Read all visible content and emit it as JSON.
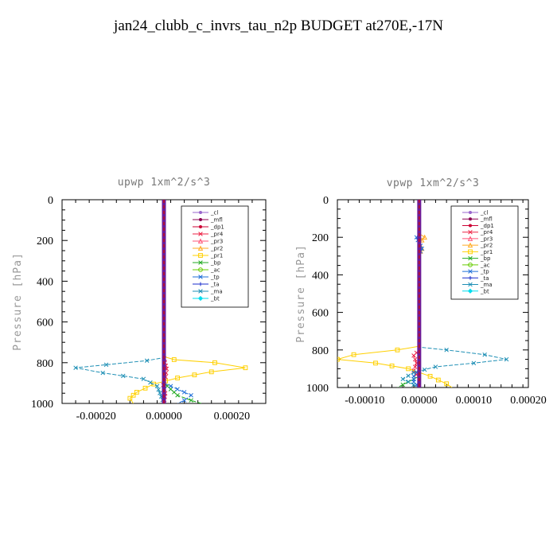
{
  "title": "jan24_clubb_c_invrs_tau_n2p  BUDGET at270E,-17N",
  "chart_data": [
    {
      "type": "line",
      "title": "upwp   1xm^2/s^3",
      "ylabel": "Pressure [hPa]",
      "xlim": [
        -0.0003,
        0.0003
      ],
      "ylim": [
        1000,
        0
      ],
      "xticks": [
        -0.0002,
        0.0,
        0.0002
      ],
      "xtick_labels": [
        "-0.00020",
        "0.00000",
        "0.00020"
      ],
      "yticks": [
        0,
        200,
        400,
        600,
        800,
        1000
      ],
      "ytick_labels": [
        "0",
        "200",
        "400",
        "600",
        "800",
        "1000"
      ],
      "legend_position": "top-right",
      "series": [
        {
          "name": "_cl",
          "color": "#9966cc",
          "marker": "dot",
          "points": [
            [
              0,
              0
            ],
            [
              0,
              1000
            ]
          ]
        },
        {
          "name": "_mfl",
          "color": "#8b0050",
          "marker": "dot",
          "points": [
            [
              0,
              0
            ],
            [
              0,
              1000
            ]
          ]
        },
        {
          "name": "_dp1",
          "color": "#cc0033",
          "marker": "dot",
          "points": [
            [
              0,
              0
            ],
            [
              0,
              1000
            ]
          ]
        },
        {
          "name": "_pr4",
          "color": "#ee2244",
          "marker": "x",
          "points": [
            [
              0,
              0
            ],
            [
              0,
              760
            ],
            [
              3e-06,
              800
            ],
            [
              8e-06,
              830
            ],
            [
              5e-06,
              870
            ],
            [
              -2e-06,
              910
            ],
            [
              4e-06,
              950
            ],
            [
              0,
              1000
            ]
          ]
        },
        {
          "name": "_pr3",
          "color": "#ff5577",
          "marker": "triangle",
          "points": [
            [
              0,
              0
            ],
            [
              0,
              1000
            ]
          ]
        },
        {
          "name": "_pr2",
          "color": "#ffaa22",
          "marker": "triangle",
          "points": [
            [
              0,
              0
            ],
            [
              0,
              1000
            ]
          ]
        },
        {
          "name": "_pr1",
          "color": "#ffd000",
          "marker": "square",
          "points": [
            [
              0,
              0
            ],
            [
              0,
              770
            ],
            [
              3e-05,
              785
            ],
            [
              0.00015,
              800
            ],
            [
              0.00024,
              825
            ],
            [
              0.00014,
              845
            ],
            [
              4e-05,
              875
            ],
            [
              -3e-05,
              905
            ],
            [
              -8e-05,
              945
            ],
            [
              -0.0001,
              975
            ],
            [
              -9e-05,
              1000
            ]
          ]
        },
        {
          "name": "_bp",
          "color": "#22aa22",
          "marker": "x",
          "points": [
            [
              0,
              0
            ],
            [
              0,
              900
            ],
            [
              2e-05,
              930
            ],
            [
              4e-05,
              960
            ],
            [
              8e-05,
              985
            ],
            [
              0.00011,
              1000
            ]
          ]
        },
        {
          "name": "_ac",
          "color": "#66cc00",
          "marker": "circle",
          "points": [
            [
              0,
              0
            ],
            [
              0,
              1000
            ]
          ]
        },
        {
          "name": "_tp",
          "color": "#1f6fd8",
          "marker": "x",
          "points": [
            [
              0,
              0
            ],
            [
              0,
              900
            ],
            [
              4e-05,
              930
            ],
            [
              8e-05,
              960
            ],
            [
              6e-05,
              985
            ],
            [
              4e-05,
              1000
            ]
          ]
        },
        {
          "name": "_ta",
          "color": "#1a2ecc",
          "marker": "plus",
          "points": [
            [
              0,
              0
            ],
            [
              0,
              1000
            ]
          ]
        },
        {
          "name": "_ma",
          "color": "#1e8fb5",
          "marker": "x",
          "points": [
            [
              0,
              0
            ],
            [
              0,
              775
            ],
            [
              -5e-05,
              790
            ],
            [
              -0.00017,
              810
            ],
            [
              -0.00026,
              825
            ],
            [
              -0.00018,
              850
            ],
            [
              -6e-05,
              880
            ],
            [
              -2e-05,
              915
            ],
            [
              0,
              1000
            ]
          ]
        },
        {
          "name": "_bt",
          "color": "#00ddee",
          "marker": "diamond",
          "points": [
            [
              0,
              0
            ],
            [
              0,
              1000
            ]
          ]
        }
      ]
    },
    {
      "type": "line",
      "title": "vpwp   1xm^2/s^3",
      "ylabel": "Pressure [hPa]",
      "xlim": [
        -0.00015,
        0.0002
      ],
      "ylim": [
        1000,
        0
      ],
      "xticks": [
        -0.0001,
        0.0,
        0.0001,
        0.0002
      ],
      "xtick_labels": [
        "-0.00010",
        "0.00000",
        "0.00010",
        "0.00020"
      ],
      "yticks": [
        0,
        200,
        400,
        600,
        800,
        1000
      ],
      "ytick_labels": [
        "0",
        "200",
        "400",
        "600",
        "800",
        "1000"
      ],
      "legend_position": "top-right",
      "series": [
        {
          "name": "_cl",
          "color": "#9966cc",
          "marker": "dot",
          "points": [
            [
              0,
              0
            ],
            [
              0,
              1000
            ]
          ]
        },
        {
          "name": "_mfl",
          "color": "#8b0050",
          "marker": "dot",
          "points": [
            [
              0,
              0
            ],
            [
              0,
              1000
            ]
          ]
        },
        {
          "name": "_dp1",
          "color": "#cc0033",
          "marker": "dot",
          "points": [
            [
              0,
              0
            ],
            [
              0,
              1000
            ]
          ]
        },
        {
          "name": "_pr4",
          "color": "#ee2244",
          "marker": "x",
          "points": [
            [
              0,
              0
            ],
            [
              0,
              800
            ],
            [
              -1e-05,
              830
            ],
            [
              -5e-06,
              870
            ],
            [
              -1e-05,
              910
            ],
            [
              0,
              950
            ],
            [
              0,
              1000
            ]
          ]
        },
        {
          "name": "_pr3",
          "color": "#ff5577",
          "marker": "triangle",
          "points": [
            [
              0,
              0
            ],
            [
              0,
              1000
            ]
          ]
        },
        {
          "name": "_pr2",
          "color": "#ffaa22",
          "marker": "triangle",
          "points": [
            [
              0,
              0
            ],
            [
              0,
              180
            ],
            [
              1e-05,
              200
            ],
            [
              0,
              230
            ],
            [
              5e-06,
              260
            ],
            [
              0,
              290
            ],
            [
              0,
              1000
            ]
          ]
        },
        {
          "name": "_pr1",
          "color": "#ffd000",
          "marker": "square",
          "points": [
            [
              0,
              0
            ],
            [
              0,
              780
            ],
            [
              -4e-05,
              800
            ],
            [
              -0.00012,
              825
            ],
            [
              -0.00015,
              850
            ],
            [
              -8e-05,
              870
            ],
            [
              -2e-05,
              900
            ],
            [
              2e-05,
              940
            ],
            [
              5e-05,
              980
            ],
            [
              6e-05,
              1000
            ]
          ]
        },
        {
          "name": "_bp",
          "color": "#22aa22",
          "marker": "x",
          "points": [
            [
              0,
              0
            ],
            [
              0,
              940
            ],
            [
              -2e-05,
              970
            ],
            [
              -4e-05,
              1000
            ]
          ]
        },
        {
          "name": "_ac",
          "color": "#66cc00",
          "marker": "circle",
          "points": [
            [
              0,
              0
            ],
            [
              0,
              1000
            ]
          ]
        },
        {
          "name": "_tp",
          "color": "#1f6fd8",
          "marker": "x",
          "points": [
            [
              0,
              0
            ],
            [
              0,
              180
            ],
            [
              -5e-06,
              200
            ],
            [
              0,
              230
            ],
            [
              5e-06,
              260
            ],
            [
              0,
              290
            ],
            [
              0,
              900
            ],
            [
              -1e-05,
              940
            ],
            [
              -1e-05,
              970
            ],
            [
              0,
              1000
            ]
          ]
        },
        {
          "name": "_ta",
          "color": "#1a2ecc",
          "marker": "plus",
          "points": [
            [
              0,
              0
            ],
            [
              0,
              1000
            ]
          ]
        },
        {
          "name": "_ma",
          "color": "#1e8fb5",
          "marker": "x",
          "points": [
            [
              0,
              0
            ],
            [
              0,
              785
            ],
            [
              5e-05,
              800
            ],
            [
              0.00012,
              825
            ],
            [
              0.00016,
              850
            ],
            [
              0.0001,
              870
            ],
            [
              3e-05,
              890
            ],
            [
              -1e-05,
              920
            ],
            [
              -3e-05,
              955
            ],
            [
              0,
              1000
            ]
          ]
        },
        {
          "name": "_bt",
          "color": "#00ddee",
          "marker": "diamond",
          "points": [
            [
              0,
              0
            ],
            [
              0,
              1000
            ]
          ]
        }
      ]
    }
  ]
}
